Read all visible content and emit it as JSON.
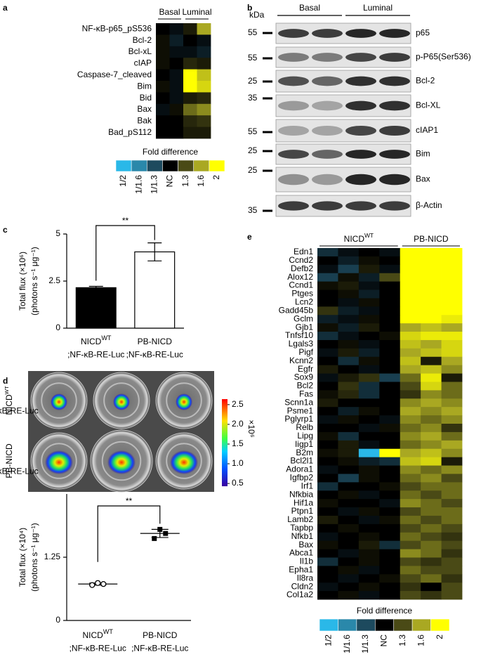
{
  "panel_labels": [
    "a",
    "b",
    "c",
    "d",
    "e"
  ],
  "blot": {
    "unit": "kDa",
    "groups": [
      "Basal",
      "Luminal"
    ],
    "rows": [
      {
        "label": "p65",
        "marker": 55
      },
      {
        "label": "p-P65(Ser536)",
        "marker": 55
      },
      {
        "label": "Bcl-2",
        "marker": 25
      },
      {
        "label": "Bcl-XL",
        "marker": 35
      },
      {
        "label": "cIAP1",
        "marker": 55
      },
      {
        "label": "Bim",
        "marker": 25
      },
      {
        "label": "Bax",
        "marker": 25
      },
      {
        "label": "β-Actin",
        "marker": 35
      }
    ]
  },
  "imaging": {
    "rows": [
      {
        "main": "NICD",
        "sup": "WT",
        "sub": ";NF-κB-RE-Luc"
      },
      {
        "main": "PB-NICD",
        "sub": ";NF-κB-RE-Luc"
      }
    ],
    "colorbar": {
      "lim": [
        0.43,
        2.64
      ],
      "ticks": [
        0.5,
        {
          "value": 1,
          "label": "1.0"
        },
        1.5,
        {
          "value": 2,
          "label": "2.0"
        },
        2.5
      ],
      "unit": "×10⁶"
    }
  },
  "chart_data": [
    {
      "type": "heatmap",
      "groups": [
        {
          "name": {
            "main": "Basal"
          },
          "columns": 2
        },
        {
          "name": {
            "main": "Luminal"
          },
          "columns": 2
        }
      ],
      "rows": [
        "NF-κB-p65_pS536",
        "Bcl-2",
        "Bcl-xL",
        "cIAP",
        "Caspase-7_cleaved",
        "Bim",
        "Bid",
        "Bax",
        "Bak",
        "Bad_pS112"
      ],
      "values": [
        [
          1.0,
          0.95,
          1.1,
          1.6
        ],
        [
          1.05,
          0.9,
          1.0,
          0.95
        ],
        [
          1.05,
          0.95,
          0.95,
          0.9
        ],
        [
          1.05,
          1.0,
          1.15,
          1.1
        ],
        [
          1.0,
          0.95,
          2,
          1.7
        ],
        [
          1.05,
          0.95,
          2,
          1.8
        ],
        [
          1.0,
          0.95,
          1.1,
          1.15
        ],
        [
          0.95,
          1.05,
          1.4,
          1.5
        ],
        [
          1.0,
          1.0,
          1.15,
          1.2
        ],
        [
          1.0,
          1.0,
          1.1,
          1.1
        ]
      ],
      "colorbar": {
        "title": "Fold difference",
        "colors": [
          "#2ab8e8",
          "#2a88aa",
          "#1d4a5e",
          "#000000",
          "#4a4a16",
          "#a9a822",
          "#ffff00"
        ],
        "ticks": [
          {
            "value": 0.5,
            "label": "1/2"
          },
          {
            "value": 0.625,
            "label": "1/1.6"
          },
          {
            "value": 0.769,
            "label": "1/1.3"
          },
          {
            "value": 1,
            "label": "NC"
          },
          1.3,
          1.6,
          2
        ]
      }
    },
    {
      "type": "bar",
      "ylabel": [
        "Total flux (×10⁶)",
        "(photons s⁻¹ μg⁻¹)"
      ],
      "categories": [
        {
          "main": "NICD",
          "sup": "WT",
          "sub": ";NF-κB-RE-Luc"
        },
        {
          "main": "PB-NICD",
          "sub": ";NF-κB-RE-Luc"
        }
      ],
      "values": [
        2.15,
        4.05
      ],
      "errors": [
        0.07,
        0.48
      ],
      "colors": [
        "#000000",
        "#ffffff"
      ],
      "ylim": [
        0,
        5
      ],
      "yticks": [
        0,
        2.5,
        5
      ],
      "annotation": "**"
    },
    {
      "type": "dot",
      "ylabel": [
        "Total flux (×10⁴)",
        "(photons s⁻¹ μg⁻¹)"
      ],
      "categories": [
        {
          "main": "NICD",
          "sup": "WT",
          "sub": ";NF-κB-RE-Luc"
        },
        {
          "main": "PB-NICD",
          "sub": ";NF-κB-RE-Luc"
        }
      ],
      "points": [
        [
          0.7,
          0.74,
          0.72
        ],
        [
          1.62,
          1.8,
          1.72
        ]
      ],
      "means": [
        0.72,
        1.72
      ],
      "errors": [
        0.02,
        0.08
      ],
      "ylim": [
        0,
        2.5
      ],
      "yticks": [
        0,
        1.25
      ],
      "annotation": "**"
    },
    {
      "type": "heatmap",
      "groups": [
        {
          "name": {
            "main": "NICD",
            "sup": "WT"
          },
          "columns": 4
        },
        {
          "name": {
            "main": "PB-NICD"
          },
          "columns": 3
        }
      ],
      "rows": [
        "Edn1",
        "Ccnd2",
        "Defb2",
        "Alox12",
        "Ccnd1",
        "Ptges",
        "Lcn2",
        "Gadd45b",
        "Gclm",
        "Gjb1",
        "Tnfsf10",
        "Lgals3",
        "Pigf",
        "Kcnn2",
        "Egfr",
        "Sox9",
        "Bcl2",
        "Fas",
        "Scnn1a",
        "Psme1",
        "Pglyrp1",
        "Relb",
        "Lipg",
        "Iigp1",
        "B2m",
        "Bcl2l1",
        "Adora1",
        "Igfbp2",
        "Irf1",
        "Nfkbia",
        "Hif1a",
        "Ptpn1",
        "Lamb2",
        "Tapbp",
        "Nfkb1",
        "Bax",
        "Abca1",
        "Il1b",
        "Epha1",
        "Il8ra",
        "Cldn2",
        "Col1a2"
      ],
      "values": [
        [
          0.85,
          0.95,
          1.0,
          0.95,
          2,
          2,
          2
        ],
        [
          1.0,
          0.9,
          1.05,
          1.0,
          2,
          2,
          2
        ],
        [
          0.95,
          0.8,
          1.1,
          0.95,
          2,
          2,
          2
        ],
        [
          0.8,
          1.05,
          0.9,
          1.3,
          2,
          2,
          2
        ],
        [
          1.05,
          1.1,
          0.95,
          1.0,
          2,
          2,
          2
        ],
        [
          1.0,
          1.05,
          0.9,
          1.0,
          2,
          2,
          2
        ],
        [
          1.0,
          0.95,
          1.05,
          1.0,
          2,
          2,
          2
        ],
        [
          1.2,
          0.9,
          0.95,
          1.0,
          2,
          2,
          2
        ],
        [
          0.9,
          0.95,
          1.05,
          1.0,
          2,
          2,
          1.9
        ],
        [
          1.05,
          0.9,
          1.1,
          1.0,
          1.6,
          1.7,
          1.6
        ],
        [
          0.85,
          0.95,
          1.0,
          1.05,
          1.8,
          1.9,
          1.9
        ],
        [
          1.0,
          1.05,
          0.95,
          1.0,
          1.7,
          1.6,
          1.8
        ],
        [
          0.95,
          1.1,
          0.9,
          1.0,
          1.6,
          1.7,
          1.8
        ],
        [
          1.0,
          0.85,
          1.05,
          1.0,
          1.7,
          1.1,
          1.6
        ],
        [
          1.1,
          1.0,
          0.95,
          1.0,
          1.6,
          1.7,
          1.5
        ],
        [
          0.95,
          1.1,
          1.2,
          0.8,
          1.4,
          1.9,
          1.1
        ],
        [
          1.0,
          1.2,
          0.85,
          1.0,
          1.3,
          1.8,
          1.4
        ],
        [
          1.05,
          1.15,
          0.85,
          1.0,
          1.2,
          1.5,
          1.4
        ],
        [
          1.1,
          1.0,
          1.0,
          1.0,
          1.5,
          1.6,
          1.5
        ],
        [
          1.0,
          0.9,
          1.05,
          1.0,
          1.6,
          1.5,
          1.6
        ],
        [
          0.95,
          1.05,
          1.0,
          0.95,
          1.5,
          1.4,
          1.5
        ],
        [
          1.0,
          1.0,
          0.95,
          1.05,
          1.4,
          1.5,
          1.2
        ],
        [
          1.05,
          0.85,
          1.0,
          1.0,
          1.5,
          1.6,
          1.4
        ],
        [
          1.0,
          1.1,
          0.95,
          1.0,
          1.4,
          1.5,
          1.6
        ],
        [
          1.05,
          1.1,
          0.5,
          2,
          1.6,
          1.7,
          1.5
        ],
        [
          1.0,
          1.05,
          0.9,
          0.85,
          1.7,
          1.8,
          1.1
        ],
        [
          0.95,
          1.0,
          1.05,
          1.0,
          1.5,
          1.4,
          1.5
        ],
        [
          1.0,
          0.8,
          1.05,
          1.0,
          1.4,
          1.5,
          1.3
        ],
        [
          0.85,
          1.0,
          1.0,
          1.05,
          1.3,
          1.4,
          1.4
        ],
        [
          1.0,
          1.05,
          0.95,
          1.0,
          1.4,
          1.3,
          1.4
        ],
        [
          1.05,
          1.0,
          1.0,
          0.95,
          1.5,
          1.4,
          1.3
        ],
        [
          1.0,
          0.95,
          1.05,
          1.0,
          1.3,
          1.4,
          1.4
        ],
        [
          1.1,
          1.0,
          0.95,
          1.05,
          1.4,
          1.3,
          1.4
        ],
        [
          1.0,
          1.05,
          1.0,
          1.0,
          1.3,
          1.4,
          1.3
        ],
        [
          0.95,
          1.0,
          1.05,
          1.0,
          1.4,
          1.3,
          1.2
        ],
        [
          1.05,
          1.0,
          1.1,
          0.85,
          1.3,
          1.4,
          1.3
        ],
        [
          1.0,
          0.95,
          1.05,
          1.0,
          1.5,
          1.4,
          1.2
        ],
        [
          0.85,
          1.0,
          1.05,
          1.0,
          1.3,
          1.2,
          1.3
        ],
        [
          1.0,
          1.05,
          0.95,
          1.0,
          1.4,
          1.3,
          1.3
        ],
        [
          1.0,
          0.95,
          1.0,
          1.05,
          1.3,
          1.4,
          1.2
        ],
        [
          0.95,
          1.0,
          1.05,
          1.0,
          1.2,
          1.0,
          1.3
        ],
        [
          1.0,
          1.05,
          0.95,
          1.0,
          1.3,
          1.2,
          1.3
        ]
      ],
      "colorbar": {
        "title": "Fold difference",
        "colors": [
          "#2ab8e8",
          "#2a88aa",
          "#1d4a5e",
          "#000000",
          "#4a4a16",
          "#a9a822",
          "#ffff00"
        ],
        "ticks": [
          {
            "value": 0.5,
            "label": "1/2"
          },
          {
            "value": 0.625,
            "label": "1/1.6"
          },
          {
            "value": 0.769,
            "label": "1/1.3"
          },
          {
            "value": 1,
            "label": "NC"
          },
          1.3,
          1.6,
          2
        ]
      }
    }
  ]
}
